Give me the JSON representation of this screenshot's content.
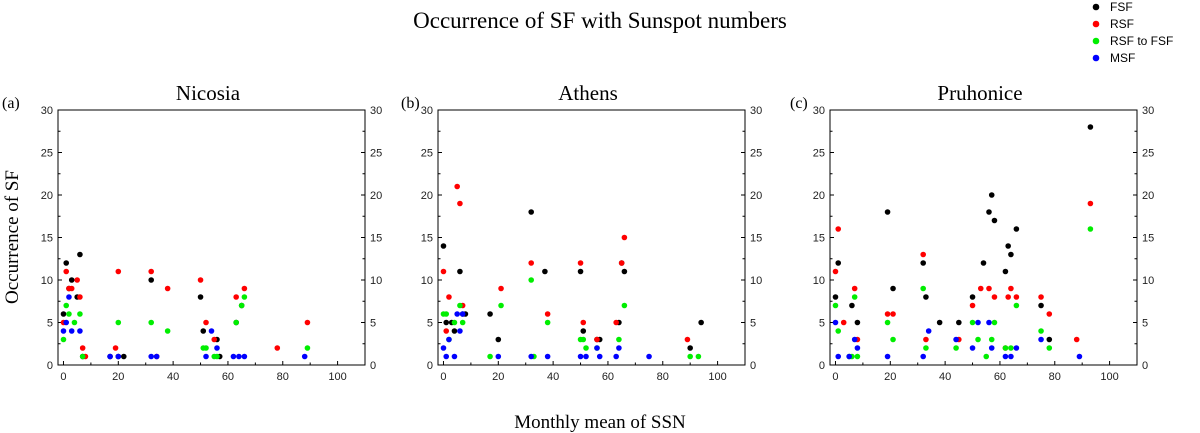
{
  "figure": {
    "title": "Occurrence of SF with Sunspot numbers",
    "xlabel": "Monthly mean of SSN",
    "ylabel": "Occurrence of SF"
  },
  "legend": {
    "placement": "top-right",
    "entries": [
      {
        "name": "FSF",
        "color": "#000000"
      },
      {
        "name": "RSF",
        "color": "#ff0000"
      },
      {
        "name": "RSF to FSF",
        "color": "#00ee00"
      },
      {
        "name": "MSF",
        "color": "#0000ff"
      }
    ]
  },
  "chart_data": [
    {
      "type": "scatter",
      "panel": "(a)",
      "title": "Nicosia",
      "xlim": [
        -2,
        110
      ],
      "ylim": [
        0,
        30
      ],
      "xticks": [
        0,
        20,
        40,
        60,
        80,
        100
      ],
      "yticks": [
        0,
        5,
        10,
        15,
        20,
        25,
        30
      ],
      "series": [
        {
          "name": "FSF",
          "color": "#000000",
          "x": [
            0,
            1,
            2,
            3,
            5,
            6,
            7,
            17,
            20,
            22,
            32,
            50,
            51,
            56,
            57,
            63,
            65
          ],
          "y": [
            6,
            12,
            9,
            10,
            8,
            13,
            1,
            1,
            1,
            1,
            10,
            8,
            4,
            3,
            1,
            5,
            7
          ]
        },
        {
          "name": "RSF",
          "color": "#ff0000",
          "x": [
            0,
            1,
            2,
            3,
            5,
            6,
            7,
            8,
            19,
            20,
            32,
            34,
            38,
            50,
            52,
            55,
            63,
            66,
            78,
            89
          ],
          "y": [
            5,
            11,
            9,
            9,
            10,
            8,
            2,
            1,
            2,
            11,
            11,
            1,
            9,
            10,
            5,
            3,
            8,
            9,
            2,
            5
          ]
        },
        {
          "name": "RSF to FSF",
          "color": "#00ee00",
          "x": [
            0,
            1,
            2,
            4,
            6,
            7,
            20,
            32,
            38,
            51,
            52,
            55,
            56,
            63,
            65,
            66,
            89
          ],
          "y": [
            3,
            7,
            6,
            5,
            6,
            1,
            5,
            5,
            4,
            2,
            2,
            1,
            1,
            5,
            7,
            8,
            2
          ]
        },
        {
          "name": "MSF",
          "color": "#0000ff",
          "x": [
            0,
            1,
            2,
            3,
            6,
            17,
            20,
            32,
            34,
            52,
            54,
            56,
            62,
            64,
            66,
            88
          ],
          "y": [
            4,
            5,
            8,
            4,
            4,
            1,
            1,
            1,
            1,
            1,
            4,
            2,
            1,
            1,
            1,
            1
          ]
        }
      ]
    },
    {
      "type": "scatter",
      "panel": "(b)",
      "title": "Athens",
      "xlim": [
        -2,
        110
      ],
      "ylim": [
        0,
        30
      ],
      "xticks": [
        0,
        20,
        40,
        60,
        80,
        100
      ],
      "yticks": [
        0,
        5,
        10,
        15,
        20,
        25,
        30
      ],
      "series": [
        {
          "name": "FSF",
          "color": "#000000",
          "x": [
            0,
            1,
            3,
            4,
            6,
            7,
            8,
            17,
            20,
            32,
            37,
            50,
            51,
            56,
            57,
            64,
            65,
            66,
            90,
            94
          ],
          "y": [
            14,
            5,
            5,
            4,
            11,
            6,
            6,
            6,
            3,
            18,
            11,
            11,
            4,
            3,
            3,
            5,
            12,
            11,
            2,
            5
          ]
        },
        {
          "name": "RSF",
          "color": "#ff0000",
          "x": [
            0,
            1,
            2,
            5,
            6,
            7,
            21,
            32,
            38,
            50,
            51,
            56,
            63,
            65,
            66,
            89
          ],
          "y": [
            11,
            4,
            8,
            21,
            19,
            7,
            9,
            12,
            6,
            12,
            5,
            3,
            5,
            12,
            15,
            3
          ]
        },
        {
          "name": "RSF to FSF",
          "color": "#00ee00",
          "x": [
            0,
            1,
            2,
            4,
            6,
            7,
            17,
            21,
            32,
            33,
            38,
            50,
            51,
            52,
            56,
            64,
            66,
            90,
            93
          ],
          "y": [
            6,
            6,
            3,
            5,
            7,
            5,
            1,
            7,
            10,
            1,
            5,
            3,
            3,
            2,
            2,
            3,
            7,
            1,
            1
          ]
        },
        {
          "name": "MSF",
          "color": "#0000ff",
          "x": [
            0,
            1,
            2,
            4,
            5,
            6,
            7,
            20,
            32,
            38,
            50,
            52,
            56,
            57,
            63,
            64,
            75
          ],
          "y": [
            2,
            1,
            3,
            1,
            6,
            4,
            6,
            1,
            1,
            1,
            1,
            1,
            2,
            1,
            1,
            2,
            1
          ]
        }
      ]
    },
    {
      "type": "scatter",
      "panel": "(c)",
      "title": "Pruhonice",
      "xlim": [
        -2,
        110
      ],
      "ylim": [
        0,
        30
      ],
      "xticks": [
        0,
        20,
        40,
        60,
        80,
        100
      ],
      "yticks": [
        0,
        5,
        10,
        15,
        20,
        25,
        30
      ],
      "series": [
        {
          "name": "FSF",
          "color": "#000000",
          "x": [
            0,
            1,
            6,
            8,
            19,
            21,
            32,
            33,
            38,
            45,
            50,
            54,
            56,
            57,
            58,
            62,
            63,
            64,
            66,
            75,
            78,
            93
          ],
          "y": [
            8,
            12,
            7,
            5,
            18,
            9,
            12,
            8,
            5,
            5,
            8,
            12,
            18,
            20,
            17,
            11,
            14,
            13,
            16,
            7,
            3,
            28
          ]
        },
        {
          "name": "RSF",
          "color": "#ff0000",
          "x": [
            0,
            1,
            3,
            7,
            8,
            19,
            21,
            32,
            33,
            45,
            50,
            53,
            56,
            58,
            62,
            63,
            64,
            66,
            75,
            78,
            88,
            93
          ],
          "y": [
            11,
            16,
            5,
            9,
            3,
            6,
            6,
            13,
            3,
            3,
            7,
            9,
            9,
            8,
            2,
            8,
            9,
            8,
            8,
            6,
            3,
            19
          ]
        },
        {
          "name": "RSF to FSF",
          "color": "#00ee00",
          "x": [
            0,
            1,
            5,
            6,
            7,
            8,
            19,
            21,
            32,
            33,
            44,
            50,
            52,
            55,
            57,
            58,
            62,
            64,
            66,
            75,
            78,
            93
          ],
          "y": [
            7,
            4,
            1,
            1,
            8,
            1,
            5,
            3,
            9,
            2,
            2,
            5,
            3,
            1,
            3,
            5,
            2,
            2,
            7,
            4,
            2,
            16
          ]
        },
        {
          "name": "MSF",
          "color": "#0000ff",
          "x": [
            0,
            1,
            5,
            7,
            8,
            19,
            32,
            34,
            44,
            50,
            52,
            56,
            57,
            62,
            64,
            66,
            75,
            89
          ],
          "y": [
            5,
            1,
            1,
            3,
            2,
            1,
            1,
            4,
            3,
            2,
            5,
            5,
            2,
            1,
            1,
            2,
            3,
            1
          ]
        }
      ]
    }
  ]
}
